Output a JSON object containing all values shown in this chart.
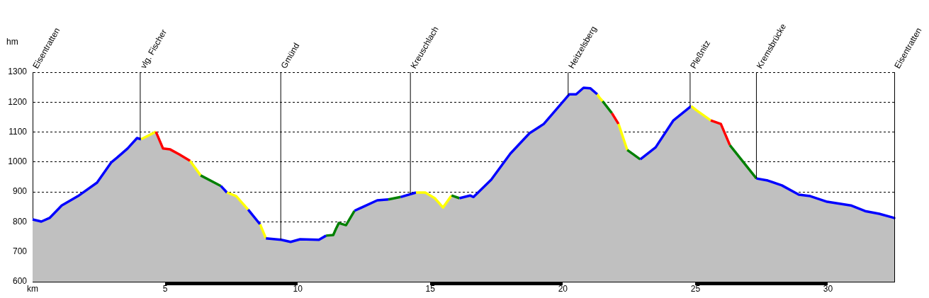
{
  "chart_data": {
    "type": "area",
    "xlabel": "km",
    "ylabel": "hm",
    "xlim": [
      0,
      32.5
    ],
    "ylim": [
      600,
      1300
    ],
    "xticks": [
      5,
      10,
      15,
      20,
      25,
      30
    ],
    "yticks": [
      600,
      700,
      800,
      900,
      1000,
      1100,
      1200,
      1300
    ],
    "grid": "y",
    "marker": "none",
    "series": [
      {
        "color": "#c0c0c0",
        "x": [
          0,
          0.33,
          0.64,
          1.1,
          1.71,
          2.43,
          2.96,
          3.18,
          3.58,
          3.94,
          4.09,
          4.65,
          4.92,
          5.19,
          5.54,
          5.94,
          6.34,
          7.1,
          7.33,
          7.68,
          8.13,
          8.58,
          8.8,
          9.38,
          9.73,
          10.09,
          10.8,
          11.07,
          11.34,
          11.44,
          11.55,
          11.82,
          12.14,
          13.0,
          13.42,
          13.88,
          14.46,
          14.81,
          15.17,
          15.48,
          15.8,
          16.1,
          16.5,
          16.63,
          17.3,
          18.02,
          18.74,
          19.28,
          20.24,
          20.5,
          20.78,
          21.04,
          21.3,
          21.38,
          21.5,
          21.85,
          22.1,
          22.43,
          22.92,
          23.5,
          24.17,
          24.84,
          25.05,
          25.58,
          25.96,
          26.3,
          27.3,
          27.73,
          28.26,
          28.9,
          29.33,
          29.97,
          30.86,
          31.4,
          31.93,
          32.5
        ],
        "values": [
          808,
          801,
          813,
          855,
          886,
          931,
          998,
          1014,
          1045,
          1080,
          1076,
          1101,
          1045,
          1042,
          1025,
          1004,
          955,
          920,
          898,
          886,
          841,
          792,
          745,
          740,
          733,
          742,
          740,
          754,
          756,
          776,
          796,
          789,
          837,
          872,
          875,
          883,
          898,
          898,
          879,
          848,
          888,
          879,
          888,
          883,
          941,
          1028,
          1096,
          1127,
          1226,
          1226,
          1248,
          1246,
          1226,
          1215,
          1203,
          1163,
          1127,
          1040,
          1009,
          1049,
          1139,
          1187,
          1172,
          1139,
          1127,
          1056,
          945,
          938,
          922,
          891,
          886,
          867,
          855,
          836,
          827,
          813
        ],
        "colors": [
          "#0000ff",
          "#0000ff",
          "#0000ff",
          "#0000ff",
          "#0000ff",
          "#0000ff",
          "#0000ff",
          "#0000ff",
          "#0000ff",
          "#0000ff",
          "#ffff00",
          "#ff0000",
          "#ff0000",
          "#ff0000",
          "#ff0000",
          "#ffff00",
          "#008000",
          "#0000ff",
          "#ffff00",
          "#ffff00",
          "#0000ff",
          "#ffff00",
          "#0000ff",
          "#0000ff",
          "#0000ff",
          "#0000ff",
          "#0000ff",
          "#008000",
          "#008000",
          "#008000",
          "#008000",
          "#008000",
          "#0000ff",
          "#0000ff",
          "#008000",
          "#0000ff",
          "#ffff00",
          "#ffff00",
          "#ffff00",
          "#ffff00",
          "#008000",
          "#0000ff",
          "#0000ff",
          "#0000ff",
          "#0000ff",
          "#0000ff",
          "#0000ff",
          "#0000ff",
          "#0000ff",
          "#0000ff",
          "#0000ff",
          "#0000ff",
          "#ffff00",
          "#ffff00",
          "#008000",
          "#ff0000",
          "#ffff00",
          "#008000",
          "#0000ff",
          "#0000ff",
          "#0000ff",
          "#ffff00",
          "#ffff00",
          "#ff0000",
          "#ff0000",
          "#008000",
          "#0000ff",
          "#0000ff",
          "#0000ff",
          "#0000ff",
          "#0000ff",
          "#0000ff",
          "#0000ff",
          "#0000ff",
          "#0000ff",
          "#0000ff"
        ]
      }
    ],
    "annotations": [
      "Eisentratten",
      {
        "text": "vlg. Fischer",
        "x": 4.06,
        "y": 1077
      },
      {
        "text": "Gmünd",
        "x": 9.36,
        "y": 740
      },
      {
        "text": "Kreuschlach",
        "x": 14.25,
        "y": 893
      },
      {
        "text": "Heitzelsberg",
        "x": 20.2,
        "y": 1222
      },
      {
        "text": "Pleßnitz",
        "x": 24.8,
        "y": 1187
      },
      {
        "text": "Kremsbrücke",
        "x": 27.3,
        "y": 945
      },
      "Eisentratten"
    ]
  }
}
